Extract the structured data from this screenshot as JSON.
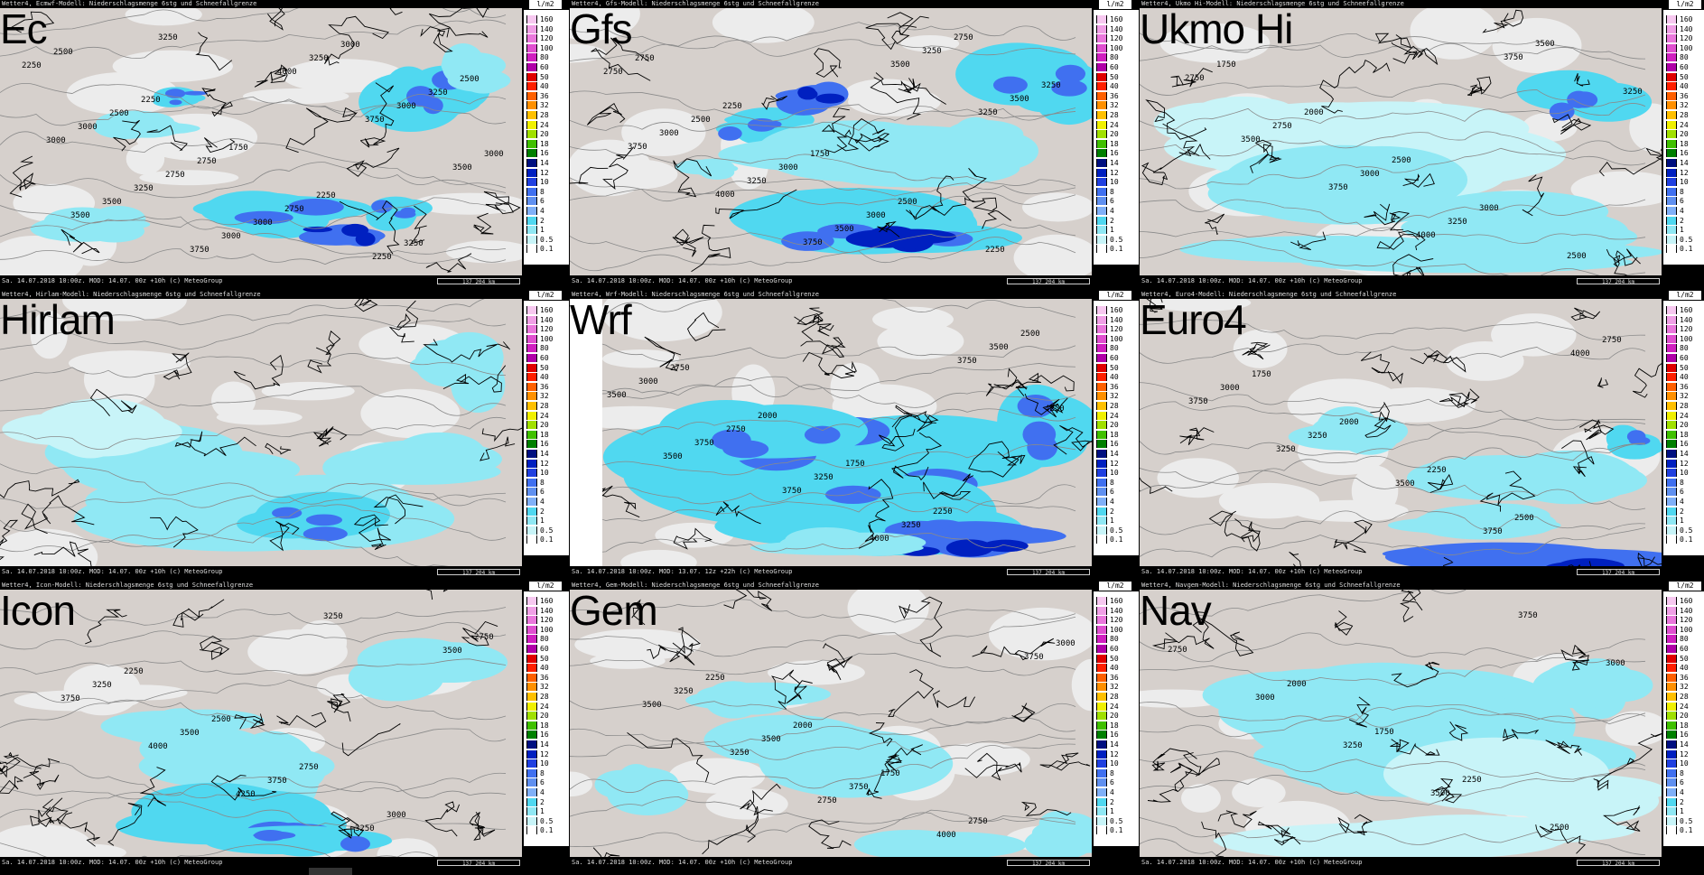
{
  "panels": [
    {
      "id": "ec",
      "name": "Ec",
      "header": "Wetter4, Ecmwf-Modell: Niederschlagsmenge 6stg und Schneefallgrenze",
      "footer": "Sa. 14.07.2018 10:00z. MOD: 14.07. 00z +10h (c) MeteoGroup",
      "scale": "137    204 km",
      "unit": "l/m2"
    },
    {
      "id": "gfs",
      "name": "Gfs",
      "header": "Wetter4, Gfs-Modell: Niederschlagsmenge 6stg und Schneefallgrenze",
      "footer": "Sa. 14.07.2018 10:00z. MOD: 14.07. 00z +10h (c) MeteoGroup",
      "scale": "137    204 km",
      "unit": "l/m2"
    },
    {
      "id": "ukmo",
      "name": "Ukmo Hi",
      "header": "Wetter4, Ukmo Hi-Modell: Niederschlagsmenge 6stg und Schneefallgrenze",
      "footer": "Sa. 14.07.2018 10:00z. MOD: 14.07. 00z +10h (c) MeteoGroup",
      "scale": "137    204 km",
      "unit": "l/m2"
    },
    {
      "id": "hirlam",
      "name": "Hirlam",
      "header": "Wetter4, Hirlam-Modell: Niederschlagsmenge 6stg und Schneefallgrenze",
      "footer": "Sa. 14.07.2018 10:00z. MOD: 14.07. 00z +10h (c) MeteoGroup",
      "scale": "137    204 km",
      "unit": "l/m2"
    },
    {
      "id": "wrf",
      "name": "Wrf",
      "header": "Wetter4, Wrf-Modell: Niederschlagsmenge 6stg und Schneefallgrenze",
      "footer": "Sa. 14.07.2018 10:00z. MOD: 13.07. 12z +22h (c) MeteoGroup",
      "scale": "137    204 km",
      "unit": "l/m2"
    },
    {
      "id": "euro4",
      "name": "Euro4",
      "header": "Wetter4, Euro4-Modell: Niederschlagsmenge 6stg und Schneefallgrenze",
      "footer": "Sa. 14.07.2018 10:00z. MOD: 14.07. 00z +10h (c) MeteoGroup",
      "scale": "137    204 km",
      "unit": "l/m2"
    },
    {
      "id": "icon",
      "name": "Icon",
      "header": "Wetter4, Icon-Modell: Niederschlagsmenge 6stg und Schneefallgrenze",
      "footer": "Sa. 14.07.2018 10:00z. MOD: 14.07. 00z +10h (c) MeteoGroup",
      "scale": "137    204 km",
      "unit": "l/m2"
    },
    {
      "id": "gem",
      "name": "Gem",
      "header": "Wetter4, Gem-Modell: Niederschlagsmenge 6stg und Schneefallgrenze",
      "footer": "Sa. 14.07.2018 10:00z. MOD: 14.07. 00z +10h (c) MeteoGroup",
      "scale": "137    204 km",
      "unit": "l/m2"
    },
    {
      "id": "nav",
      "name": "Nav",
      "header": "Wetter4, Navgem-Modell: Niederschlagsmenge 6stg und Schneefallgrenze",
      "footer": "Sa. 14.07.2018 10:00z. MOD: 14.07. 00z +10h (c) MeteoGroup",
      "scale": "137    204 km",
      "unit": "l/m2"
    }
  ],
  "legend": [
    {
      "label": "160",
      "color": "#f7c8f0"
    },
    {
      "label": "140",
      "color": "#f0a0e6"
    },
    {
      "label": "120",
      "color": "#ea78dc"
    },
    {
      "label": "100",
      "color": "#e050d0"
    },
    {
      "label": "80",
      "color": "#d020c0"
    },
    {
      "label": "60",
      "color": "#b000a8"
    },
    {
      "label": "50",
      "color": "#e00000"
    },
    {
      "label": "40",
      "color": "#ff2000"
    },
    {
      "label": "36",
      "color": "#ff6000"
    },
    {
      "label": "32",
      "color": "#ff9000"
    },
    {
      "label": "28",
      "color": "#ffc000"
    },
    {
      "label": "24",
      "color": "#f0f000"
    },
    {
      "label": "20",
      "color": "#a0e000"
    },
    {
      "label": "18",
      "color": "#40c000"
    },
    {
      "label": "16",
      "color": "#008000"
    },
    {
      "label": "14",
      "color": "#001080"
    },
    {
      "label": "12",
      "color": "#0020c0"
    },
    {
      "label": "10",
      "color": "#2040e0"
    },
    {
      "label": "8",
      "color": "#4070f0"
    },
    {
      "label": "6",
      "color": "#6090f0"
    },
    {
      "label": "4",
      "color": "#80b0f8"
    },
    {
      "label": "2",
      "color": "#50d8f0"
    },
    {
      "label": "1",
      "color": "#90e8f4"
    },
    {
      "label": "0.5",
      "color": "#c8f4f8"
    },
    {
      "label": "0.1",
      "color": "#ffffff"
    }
  ],
  "contour_labels": {
    "ec": [
      "2500",
      "2250",
      "1750",
      "2250",
      "3250",
      "2250",
      "2500",
      "2750",
      "2750",
      "2250",
      "2500",
      "3000",
      "2750",
      "3000",
      "3000",
      "3250",
      "3000",
      "3250",
      "3000",
      "3250",
      "3000",
      "3000",
      "3500",
      "3750",
      "4000",
      "3750",
      "3500",
      "3500",
      "3250"
    ],
    "gfs": [
      "2750",
      "2250",
      "1750",
      "2500",
      "2250",
      "2750",
      "2500",
      "3000",
      "3000",
      "2750",
      "3250",
      "3000",
      "3250",
      "3500",
      "3250",
      "3500",
      "3750",
      "4000",
      "3750",
      "3500",
      "3250"
    ],
    "ukmo": [
      "1750",
      "2000",
      "2500",
      "3000",
      "2500",
      "2750",
      "2750",
      "3000",
      "3250",
      "3500",
      "3250",
      "3500",
      "3750",
      "4000",
      "3750"
    ],
    "hirlam": [],
    "wrf": [
      "2750",
      "2000",
      "1750",
      "2250",
      "2500",
      "3000",
      "2750",
      "3250",
      "3250",
      "3500",
      "3500",
      "3750",
      "3750",
      "4000",
      "3750",
      "4250",
      "3500"
    ],
    "euro4": [
      "1750",
      "2000",
      "2250",
      "2500",
      "2750",
      "3000",
      "3250",
      "3500",
      "3750",
      "4000",
      "3750",
      "3250"
    ],
    "icon": [
      "2250",
      "2500",
      "2750",
      "3000",
      "2750",
      "3250",
      "3500",
      "3750",
      "3250",
      "3500",
      "3750",
      "4000",
      "4250",
      "3250"
    ],
    "gem": [
      "2250",
      "2000",
      "1750",
      "2750",
      "3000",
      "3250",
      "3500",
      "3750",
      "4000",
      "3750",
      "3500",
      "3250",
      "2750"
    ],
    "nav": [
      "2000",
      "1750",
      "2250",
      "2500",
      "2750",
      "3000",
      "3250",
      "3500",
      "3750",
      "3000"
    ]
  },
  "colors": {
    "land": "#d6d0cc",
    "light": "#ededed",
    "rain_light": "#c8f4f8",
    "rain_mid": "#90e8f4",
    "rain_cyan": "#50d8f0",
    "rain_blue": "#4070f0",
    "rain_dark": "#0020c0",
    "border": "#000000",
    "contour": "#8a8a8a"
  }
}
